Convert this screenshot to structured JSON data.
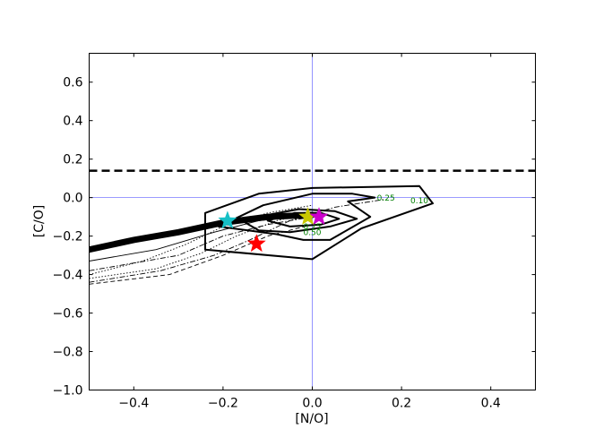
{
  "chart_data": {
    "type": "line",
    "title": "",
    "xlabel": "[N/O]",
    "ylabel": "[C/O]",
    "xlim": [
      -0.5,
      0.5
    ],
    "ylim": [
      -1.0,
      0.75
    ],
    "xticks": [
      -0.4,
      -0.2,
      0.0,
      0.2,
      0.4
    ],
    "yticks": [
      -1.0,
      -0.8,
      -0.6,
      -0.4,
      -0.2,
      0.0,
      0.2,
      0.4,
      0.6
    ],
    "xtick_labels": [
      "−0.4",
      "−0.2",
      "0.0",
      "0.2",
      "0.4"
    ],
    "ytick_labels": [
      "−1.0",
      "−0.8",
      "−0.6",
      "−0.4",
      "−0.2",
      "0.0",
      "0.2",
      "0.4",
      "0.6"
    ],
    "reference_lines": {
      "x": 0.0,
      "y": 0.0,
      "color": "#7a7aff"
    },
    "threshold_line": {
      "y": 0.14,
      "style": "dashed",
      "color": "#000000"
    },
    "contours": [
      {
        "level_label": "0.10",
        "points": [
          [
            -0.24,
            -0.27
          ],
          [
            0.0,
            -0.32
          ],
          [
            0.11,
            -0.16
          ],
          [
            0.27,
            -0.03
          ],
          [
            0.24,
            0.06
          ],
          [
            0.0,
            0.05
          ],
          [
            -0.12,
            0.02
          ],
          [
            -0.24,
            -0.08
          ]
        ]
      },
      {
        "level_label": "0.25",
        "points": [
          [
            -0.21,
            -0.15
          ],
          [
            -0.11,
            -0.04
          ],
          [
            0.0,
            0.02
          ],
          [
            0.09,
            0.02
          ],
          [
            0.14,
            0.0
          ],
          [
            0.08,
            -0.02
          ],
          [
            0.13,
            -0.1
          ],
          [
            0.04,
            -0.22
          ],
          [
            -0.02,
            -0.22
          ],
          [
            -0.08,
            -0.19
          ],
          [
            -0.21,
            -0.15
          ]
        ]
      },
      {
        "level_label": "0.50",
        "points": [
          [
            -0.15,
            -0.13
          ],
          [
            -0.1,
            -0.09
          ],
          [
            -0.03,
            -0.06
          ],
          [
            0.05,
            -0.07
          ],
          [
            0.1,
            -0.11
          ],
          [
            0.04,
            -0.15
          ],
          [
            -0.05,
            -0.18
          ],
          [
            -0.12,
            -0.17
          ],
          [
            -0.15,
            -0.13
          ]
        ]
      },
      {
        "level_label": "0.75",
        "points": [
          [
            -0.1,
            -0.12
          ],
          [
            -0.04,
            -0.08
          ],
          [
            0.02,
            -0.08
          ],
          [
            0.06,
            -0.11
          ],
          [
            0.02,
            -0.14
          ],
          [
            -0.05,
            -0.15
          ],
          [
            -0.1,
            -0.12
          ]
        ]
      }
    ],
    "contour_labels": [
      {
        "text": "0.10",
        "x": 0.24,
        "y": -0.03
      },
      {
        "text": "0.25",
        "x": 0.165,
        "y": -0.015
      },
      {
        "text": "0.50",
        "x": 0.0,
        "y": -0.195
      },
      {
        "text": "0.75",
        "x": 0.0,
        "y": -0.165
      }
    ],
    "thick_band": {
      "points": [
        [
          -0.5,
          -0.27
        ],
        [
          -0.4,
          -0.22
        ],
        [
          -0.3,
          -0.18
        ],
        [
          -0.2,
          -0.13
        ],
        [
          -0.1,
          -0.1
        ],
        [
          0.0,
          -0.09
        ]
      ]
    },
    "thin_curves": [
      {
        "style": "dotted",
        "points": [
          [
            -0.5,
            -0.4
          ],
          [
            -0.38,
            -0.33
          ],
          [
            -0.28,
            -0.24
          ],
          [
            -0.2,
            -0.15
          ],
          [
            -0.1,
            -0.08
          ],
          [
            0.0,
            -0.04
          ]
        ]
      },
      {
        "style": "dotted",
        "points": [
          [
            -0.5,
            -0.42
          ],
          [
            -0.35,
            -0.37
          ],
          [
            -0.25,
            -0.29
          ],
          [
            -0.17,
            -0.2
          ],
          [
            -0.08,
            -0.12
          ],
          [
            0.0,
            -0.08
          ]
        ]
      },
      {
        "style": "dashdot",
        "points": [
          [
            -0.5,
            -0.44
          ],
          [
            -0.34,
            -0.38
          ],
          [
            -0.22,
            -0.3
          ],
          [
            -0.14,
            -0.22
          ],
          [
            -0.05,
            -0.12
          ],
          [
            0.05,
            -0.05
          ],
          [
            0.16,
            -0.01
          ]
        ]
      },
      {
        "style": "dashdot",
        "points": [
          [
            -0.5,
            -0.38
          ],
          [
            -0.3,
            -0.3
          ],
          [
            -0.2,
            -0.2
          ],
          [
            -0.1,
            -0.14
          ],
          [
            0.0,
            -0.1
          ]
        ]
      },
      {
        "style": "dashed",
        "points": [
          [
            -0.5,
            -0.45
          ],
          [
            -0.32,
            -0.4
          ],
          [
            -0.2,
            -0.3
          ],
          [
            -0.1,
            -0.2
          ],
          [
            0.0,
            -0.14
          ]
        ]
      },
      {
        "style": "solid",
        "points": [
          [
            -0.5,
            -0.33
          ],
          [
            -0.35,
            -0.27
          ],
          [
            -0.22,
            -0.18
          ],
          [
            -0.12,
            -0.12
          ],
          [
            0.0,
            -0.09
          ]
        ]
      }
    ],
    "stars": [
      {
        "x": -0.19,
        "y": -0.12,
        "color": "#17c0c6"
      },
      {
        "x": -0.125,
        "y": -0.24,
        "color": "#ff0000"
      },
      {
        "x": -0.01,
        "y": -0.1,
        "color": "#c8c800"
      },
      {
        "x": 0.015,
        "y": -0.1,
        "color": "#cc00cc"
      }
    ]
  }
}
